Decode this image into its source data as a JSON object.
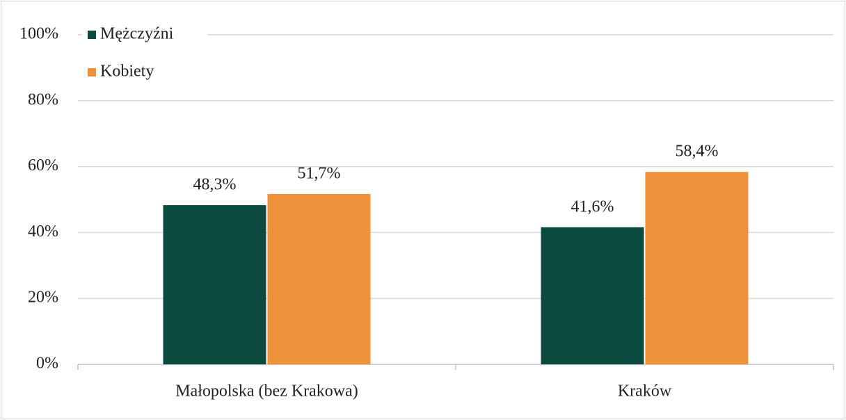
{
  "chart_data": {
    "type": "bar",
    "categories": [
      "Małopolska (bez Krakowa)",
      "Kraków"
    ],
    "series": [
      {
        "name": "Mężczyźni",
        "color": "#0b4a3f",
        "values": [
          48.3,
          41.6
        ],
        "value_labels": [
          "48,3%",
          "41,6%"
        ]
      },
      {
        "name": "Kobiety",
        "color": "#ee913b",
        "values": [
          51.7,
          58.4
        ],
        "value_labels": [
          "51,7%",
          "58,4%"
        ]
      }
    ],
    "ylim": [
      0,
      100
    ],
    "yticks": [
      {
        "value": 0,
        "label": "0%"
      },
      {
        "value": 20,
        "label": "20%"
      },
      {
        "value": 40,
        "label": "40%"
      },
      {
        "value": 60,
        "label": "60%"
      },
      {
        "value": 80,
        "label": "80%"
      },
      {
        "value": 100,
        "label": "100%"
      }
    ],
    "grid": true,
    "legend": "top-left"
  }
}
